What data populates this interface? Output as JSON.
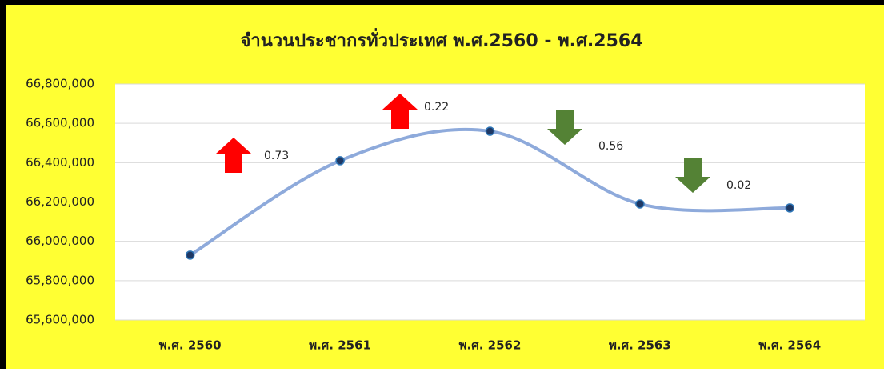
{
  "chart_data": {
    "type": "line",
    "title": "จำนวนประชากรทั่วประเทศ พ.ศ.2560 - พ.ศ.2564",
    "categories": [
      "พ.ศ. 2560",
      "พ.ศ. 2561",
      "พ.ศ. 2562",
      "พ.ศ. 2563",
      "พ.ศ. 2564"
    ],
    "series": [
      {
        "name": "จำนวนประชากร",
        "color": "#8eaadb",
        "values": [
          65930000,
          66410000,
          66560000,
          66190000,
          66170000
        ]
      }
    ],
    "ylim": [
      65600000,
      66800000
    ],
    "yticks": [
      {
        "value": 65600000,
        "label": "65,600,000"
      },
      {
        "value": 65800000,
        "label": "65,800,000"
      },
      {
        "value": 66000000,
        "label": "66,000,000"
      },
      {
        "value": 66200000,
        "label": "66,200,000"
      },
      {
        "value": 66400000,
        "label": "66,400,000"
      },
      {
        "value": 66600000,
        "label": "66,600,000"
      },
      {
        "value": 66800000,
        "label": "66,800,000"
      }
    ],
    "grid": true,
    "smooth": true,
    "annotations": [
      {
        "text": "0.73",
        "direction": "up",
        "color": "#ff0000"
      },
      {
        "text": "0.22",
        "direction": "up",
        "color": "#ff0000"
      },
      {
        "text": "0.56",
        "direction": "down",
        "color": "#548235"
      },
      {
        "text": "0.02",
        "direction": "down",
        "color": "#548235"
      }
    ]
  }
}
